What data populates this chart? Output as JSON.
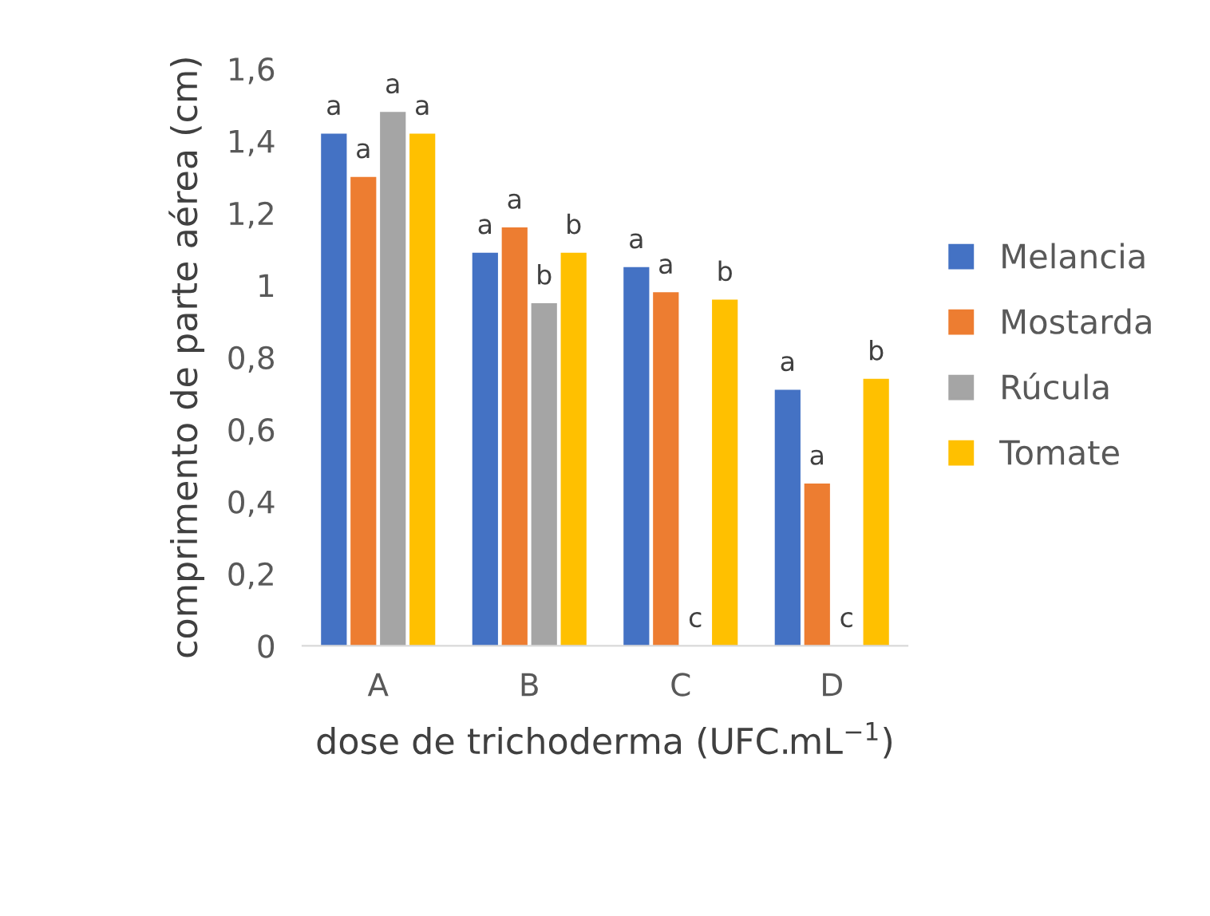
{
  "chart_data": {
    "type": "bar",
    "categories": [
      "A",
      "B",
      "C",
      "D"
    ],
    "xlabel": "dose de trichoderma (UFC.mL$^{−1}$)",
    "ylabel": "comprimento de parte aérea (cm)",
    "ylim": [
      0,
      1.6
    ],
    "yticks": [
      {
        "value": 0,
        "label": "0"
      },
      {
        "value": 0.2,
        "label": "0,2"
      },
      {
        "value": 0.4,
        "label": "0,4"
      },
      {
        "value": 0.6,
        "label": "0,6"
      },
      {
        "value": 0.8,
        "label": "0,8"
      },
      {
        "value": 1,
        "label": "1"
      },
      {
        "value": 1.2,
        "label": "1,2"
      },
      {
        "value": 1.4,
        "label": "1,4"
      },
      {
        "value": 1.6,
        "label": "1,6"
      }
    ],
    "grid": false,
    "legend": "right",
    "series": [
      {
        "name": "Melancia",
        "color": "#4472c4",
        "values": [
          1.42,
          1.09,
          1.05,
          0.71
        ],
        "value_labels": [
          "a",
          "a",
          "a",
          "a"
        ]
      },
      {
        "name": "Mostarda",
        "color": "#ed7d31",
        "values": [
          1.3,
          1.16,
          0.98,
          0.45
        ],
        "value_labels": [
          "a",
          "a",
          "a",
          "a"
        ]
      },
      {
        "name": "Rúcula",
        "color": "#a5a5a5",
        "values": [
          1.48,
          0.95,
          0,
          0
        ],
        "value_labels": [
          "a",
          "b",
          "c",
          "c"
        ]
      },
      {
        "name": "Tomate",
        "color": "#ffc000",
        "values": [
          1.42,
          1.09,
          0.96,
          0.74
        ],
        "value_labels": [
          "a",
          "b",
          "b",
          "b"
        ]
      }
    ]
  }
}
